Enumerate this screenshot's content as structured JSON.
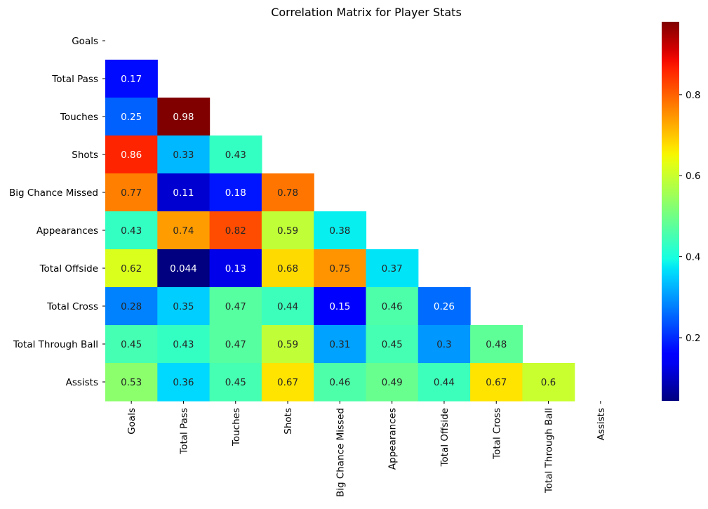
{
  "chart_data": {
    "type": "heatmap",
    "title": "Correlation Matrix for Player Stats",
    "variables": [
      "Goals",
      "Total Pass",
      "Touches",
      "Shots",
      "Big Chance Missed",
      "Appearances",
      "Total Offside",
      "Total Cross",
      "Total Through Ball",
      "Assists"
    ],
    "mask": "upper-triangle-including-diagonal",
    "cells": [
      {
        "row": "Total Pass",
        "col": "Goals",
        "value": 0.17,
        "label": "0.17"
      },
      {
        "row": "Touches",
        "col": "Goals",
        "value": 0.25,
        "label": "0.25"
      },
      {
        "row": "Touches",
        "col": "Total Pass",
        "value": 0.98,
        "label": "0.98"
      },
      {
        "row": "Shots",
        "col": "Goals",
        "value": 0.86,
        "label": "0.86"
      },
      {
        "row": "Shots",
        "col": "Total Pass",
        "value": 0.33,
        "label": "0.33"
      },
      {
        "row": "Shots",
        "col": "Touches",
        "value": 0.43,
        "label": "0.43"
      },
      {
        "row": "Big Chance Missed",
        "col": "Goals",
        "value": 0.77,
        "label": "0.77"
      },
      {
        "row": "Big Chance Missed",
        "col": "Total Pass",
        "value": 0.11,
        "label": "0.11"
      },
      {
        "row": "Big Chance Missed",
        "col": "Touches",
        "value": 0.18,
        "label": "0.18"
      },
      {
        "row": "Big Chance Missed",
        "col": "Shots",
        "value": 0.78,
        "label": "0.78"
      },
      {
        "row": "Appearances",
        "col": "Goals",
        "value": 0.43,
        "label": "0.43"
      },
      {
        "row": "Appearances",
        "col": "Total Pass",
        "value": 0.74,
        "label": "0.74"
      },
      {
        "row": "Appearances",
        "col": "Touches",
        "value": 0.82,
        "label": "0.82"
      },
      {
        "row": "Appearances",
        "col": "Shots",
        "value": 0.59,
        "label": "0.59"
      },
      {
        "row": "Appearances",
        "col": "Big Chance Missed",
        "value": 0.38,
        "label": "0.38"
      },
      {
        "row": "Total Offside",
        "col": "Goals",
        "value": 0.62,
        "label": "0.62"
      },
      {
        "row": "Total Offside",
        "col": "Total Pass",
        "value": 0.044,
        "label": "0.044"
      },
      {
        "row": "Total Offside",
        "col": "Touches",
        "value": 0.13,
        "label": "0.13"
      },
      {
        "row": "Total Offside",
        "col": "Shots",
        "value": 0.68,
        "label": "0.68"
      },
      {
        "row": "Total Offside",
        "col": "Big Chance Missed",
        "value": 0.75,
        "label": "0.75"
      },
      {
        "row": "Total Offside",
        "col": "Appearances",
        "value": 0.37,
        "label": "0.37"
      },
      {
        "row": "Total Cross",
        "col": "Goals",
        "value": 0.28,
        "label": "0.28"
      },
      {
        "row": "Total Cross",
        "col": "Total Pass",
        "value": 0.35,
        "label": "0.35"
      },
      {
        "row": "Total Cross",
        "col": "Touches",
        "value": 0.47,
        "label": "0.47"
      },
      {
        "row": "Total Cross",
        "col": "Shots",
        "value": 0.44,
        "label": "0.44"
      },
      {
        "row": "Total Cross",
        "col": "Big Chance Missed",
        "value": 0.15,
        "label": "0.15"
      },
      {
        "row": "Total Cross",
        "col": "Appearances",
        "value": 0.46,
        "label": "0.46"
      },
      {
        "row": "Total Cross",
        "col": "Total Offside",
        "value": 0.26,
        "label": "0.26"
      },
      {
        "row": "Total Through Ball",
        "col": "Goals",
        "value": 0.45,
        "label": "0.45"
      },
      {
        "row": "Total Through Ball",
        "col": "Total Pass",
        "value": 0.43,
        "label": "0.43"
      },
      {
        "row": "Total Through Ball",
        "col": "Touches",
        "value": 0.47,
        "label": "0.47"
      },
      {
        "row": "Total Through Ball",
        "col": "Shots",
        "value": 0.59,
        "label": "0.59"
      },
      {
        "row": "Total Through Ball",
        "col": "Big Chance Missed",
        "value": 0.31,
        "label": "0.31"
      },
      {
        "row": "Total Through Ball",
        "col": "Appearances",
        "value": 0.45,
        "label": "0.45"
      },
      {
        "row": "Total Through Ball",
        "col": "Total Offside",
        "value": 0.3,
        "label": "0.3"
      },
      {
        "row": "Total Through Ball",
        "col": "Total Cross",
        "value": 0.48,
        "label": "0.48"
      },
      {
        "row": "Assists",
        "col": "Goals",
        "value": 0.53,
        "label": "0.53"
      },
      {
        "row": "Assists",
        "col": "Total Pass",
        "value": 0.36,
        "label": "0.36"
      },
      {
        "row": "Assists",
        "col": "Touches",
        "value": 0.45,
        "label": "0.45"
      },
      {
        "row": "Assists",
        "col": "Shots",
        "value": 0.67,
        "label": "0.67"
      },
      {
        "row": "Assists",
        "col": "Big Chance Missed",
        "value": 0.46,
        "label": "0.46"
      },
      {
        "row": "Assists",
        "col": "Appearances",
        "value": 0.49,
        "label": "0.49"
      },
      {
        "row": "Assists",
        "col": "Total Offside",
        "value": 0.44,
        "label": "0.44"
      },
      {
        "row": "Assists",
        "col": "Total Cross",
        "value": 0.67,
        "label": "0.67"
      },
      {
        "row": "Assists",
        "col": "Total Through Ball",
        "value": 0.6,
        "label": "0.6"
      }
    ],
    "colormap": "jet",
    "color_range": [
      0.044,
      0.98
    ],
    "colorbar_ticks": [
      0.2,
      0.4,
      0.6,
      0.8
    ],
    "colorbar_tick_labels": [
      "0.2",
      "0.4",
      "0.6",
      "0.8"
    ],
    "legend": "colorbar-right",
    "grid": false
  }
}
